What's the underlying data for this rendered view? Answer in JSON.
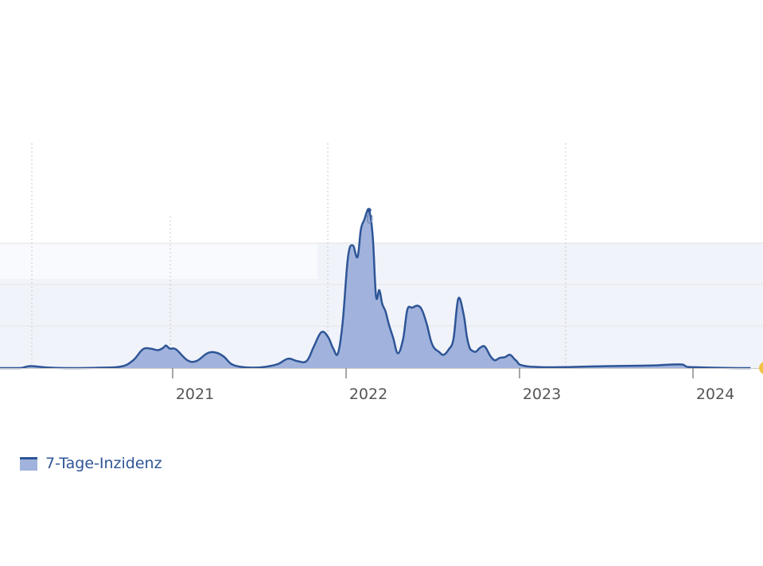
{
  "colors": {
    "line": "#2e5597",
    "fill": "#a1b3dc",
    "plot_band": "#f1f3fa",
    "grid": "#e6e6e6",
    "separator": "#c8c8c8",
    "axis": "#c9c9c9",
    "tick_text": "#555555",
    "marker": "#f3c242"
  },
  "chart_data": {
    "type": "area",
    "x_unit": "date",
    "x_ticks": [
      "2021",
      "2022",
      "2023",
      "2024"
    ],
    "grid": true,
    "legend": "bottom-left",
    "point_label": "Ü",
    "series": [
      {
        "name": "7-Tage-Inzidenz",
        "x": [
          "2020-01-01",
          "2020-02-15",
          "2020-03-05",
          "2020-03-28",
          "2020-04-20",
          "2020-06-01",
          "2020-08-01",
          "2020-09-15",
          "2020-10-10",
          "2020-10-30",
          "2020-11-15",
          "2020-12-01",
          "2020-12-12",
          "2020-12-18",
          "2020-12-26",
          "2021-01-08",
          "2021-02-01",
          "2021-02-20",
          "2021-03-15",
          "2021-04-01",
          "2021-04-18",
          "2021-05-05",
          "2021-05-25",
          "2021-06-20",
          "2021-07-15",
          "2021-08-10",
          "2021-09-01",
          "2021-09-20",
          "2021-10-10",
          "2021-10-25",
          "2021-11-10",
          "2021-11-24",
          "2021-12-05",
          "2021-12-15",
          "2021-12-25",
          "2022-01-05",
          "2022-01-15",
          "2022-01-25",
          "2022-02-01",
          "2022-02-08",
          "2022-02-18",
          "2022-02-26",
          "2022-03-05",
          "2022-03-12",
          "2022-03-18",
          "2022-03-25",
          "2022-04-01",
          "2022-04-10",
          "2022-04-20",
          "2022-05-01",
          "2022-05-10",
          "2022-05-20",
          "2022-06-01",
          "2022-06-10",
          "2022-06-20",
          "2022-06-28",
          "2022-07-05",
          "2022-07-15",
          "2022-07-25",
          "2022-08-05",
          "2022-08-15",
          "2022-08-25",
          "2022-09-05",
          "2022-09-12",
          "2022-09-18",
          "2022-09-24",
          "2022-10-01",
          "2022-10-10",
          "2022-10-20",
          "2022-11-01",
          "2022-11-10",
          "2022-11-20",
          "2022-12-01",
          "2022-12-12",
          "2022-12-22",
          "2022-12-26",
          "2022-12-31",
          "2023-01-10",
          "2023-01-20",
          "2023-02-01",
          "2023-03-01",
          "2023-05-01",
          "2023-07-01",
          "2023-09-01",
          "2023-10-15",
          "2023-11-15",
          "2023-12-10",
          "2023-12-20",
          "2024-01-10",
          "2024-02-10",
          "2024-04-01",
          "2024-05-01"
        ],
        "values": [
          0,
          0,
          5,
          3,
          1,
          0,
          1,
          4,
          20,
          48,
          50,
          46,
          52,
          58,
          50,
          48,
          20,
          18,
          38,
          40,
          30,
          10,
          3,
          1,
          3,
          10,
          24,
          18,
          18,
          55,
          92,
          80,
          50,
          38,
          120,
          285,
          315,
          285,
          355,
          380,
          405,
          340,
          185,
          200,
          165,
          145,
          112,
          78,
          38,
          75,
          150,
          155,
          160,
          148,
          112,
          72,
          52,
          42,
          34,
          48,
          75,
          178,
          140,
          82,
          52,
          44,
          42,
          52,
          55,
          30,
          20,
          26,
          28,
          34,
          22,
          18,
          10,
          6,
          4,
          3,
          2,
          3,
          5,
          6,
          7,
          9,
          9,
          3,
          2,
          1,
          0,
          0
        ]
      }
    ]
  }
}
